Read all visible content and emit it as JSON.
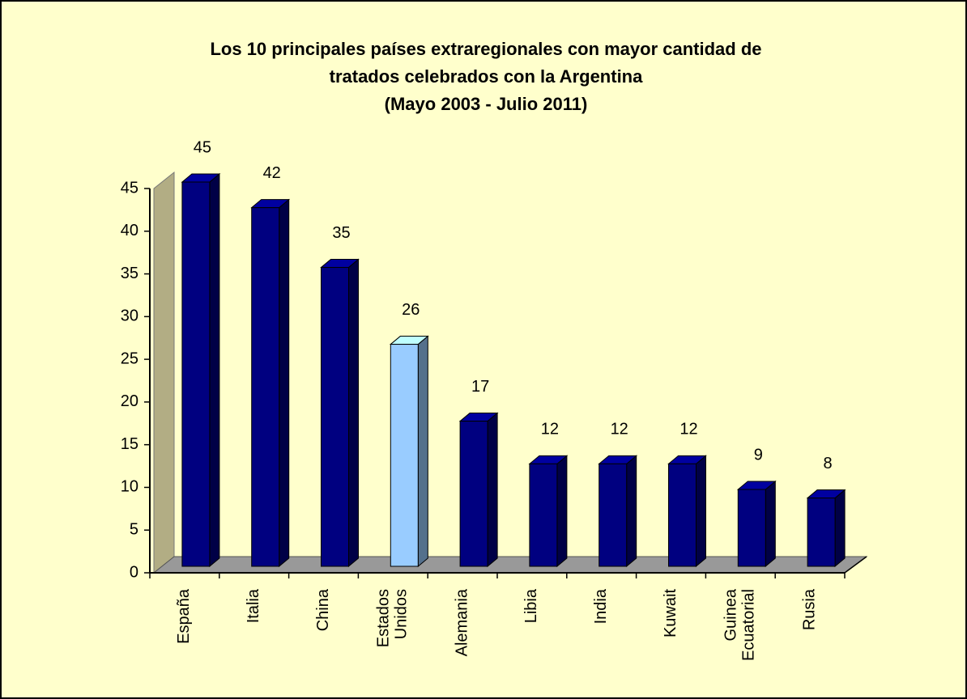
{
  "chart_data": {
    "type": "bar",
    "title": [
      "Los 10 principales países extraregionales con mayor cantidad de",
      "tratados celebrados con la Argentina"
    ],
    "subtitle": "(Mayo 2003 - Julio 2011)",
    "categories": [
      "España",
      "Italia",
      "China",
      "Estados Unidos",
      "Alemania",
      "Libia",
      "India",
      "Kuwait",
      "Guinea Ecuatorial",
      "Rusia"
    ],
    "values": [
      45,
      42,
      35,
      26,
      17,
      12,
      12,
      12,
      9,
      8
    ],
    "colors": [
      "#000080",
      "#000080",
      "#000080",
      "#99ccff",
      "#000080",
      "#000080",
      "#000080",
      "#000080",
      "#000080",
      "#000080"
    ],
    "ylim": [
      0,
      45
    ],
    "yticks": [
      0,
      5,
      10,
      15,
      20,
      25,
      30,
      35,
      40,
      45
    ],
    "grid": false
  }
}
